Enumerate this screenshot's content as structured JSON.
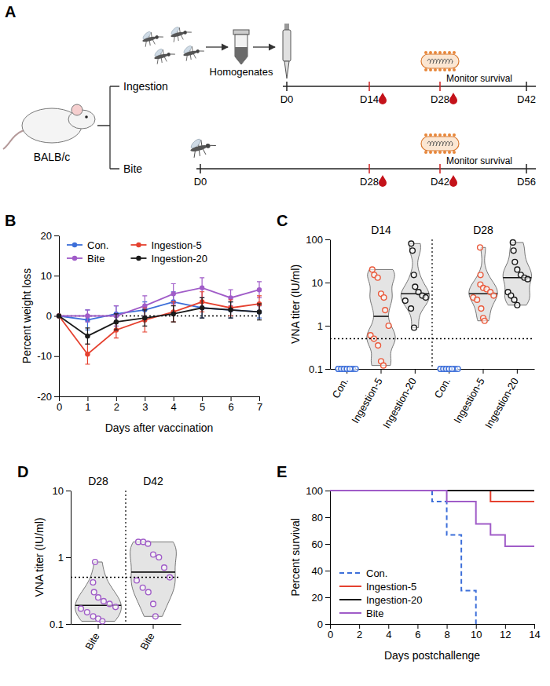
{
  "diagram": {
    "panel_label": "A",
    "host": "BALB/c",
    "arms": [
      {
        "label": "Ingestion",
        "step": "Homogenates",
        "timepoints": [
          "D0",
          "D14",
          "D28",
          "D42"
        ],
        "bleeds": [
          "D14",
          "D28"
        ],
        "challenge": "D28",
        "note": "Monitor survival"
      },
      {
        "label": "Bite",
        "timepoints": [
          "D0",
          "D28",
          "D42",
          "D56"
        ],
        "bleeds": [
          "D28",
          "D42"
        ],
        "challenge": "D42",
        "note": "Monitor survival"
      }
    ]
  },
  "chart_data": [
    {
      "panel_label": "B",
      "type": "line",
      "x": [
        0,
        1,
        2,
        3,
        4,
        5,
        6,
        7
      ],
      "xlim": [
        0,
        7
      ],
      "xticks": [
        0,
        1,
        2,
        3,
        4,
        5,
        6,
        7
      ],
      "ylim": [
        -20,
        20
      ],
      "yticks": [
        -20,
        -10,
        0,
        10,
        20
      ],
      "x_label": "Days after vaccination",
      "y_label": "Percent weight loss",
      "hline": 0,
      "legend": "upper left",
      "marker": "circle",
      "series": [
        {
          "name": "Con.",
          "color": "#3d6fd9",
          "values": [
            0,
            -1,
            0.5,
            1.5,
            3.5,
            2,
            1.5,
            1
          ],
          "errors": [
            0,
            2.5,
            2,
            2,
            2.5,
            2.5,
            2,
            1.5
          ]
        },
        {
          "name": "Bite",
          "color": "#a05cc8",
          "values": [
            0,
            0,
            0,
            2.5,
            5.5,
            7,
            4.5,
            6.5
          ],
          "errors": [
            0,
            1.5,
            2.5,
            2.5,
            2.5,
            2.5,
            2,
            2
          ]
        },
        {
          "name": "Ingestion-5",
          "color": "#e5412f",
          "values": [
            0,
            -9.5,
            -3.5,
            -1,
            1,
            3.5,
            2,
            3
          ],
          "errors": [
            0,
            2.5,
            2,
            3,
            2.5,
            2.5,
            2,
            2
          ]
        },
        {
          "name": "Ingestion-20",
          "color": "#1a1a1a",
          "values": [
            0,
            -5,
            -1.5,
            -0.5,
            0.5,
            2,
            1.5,
            1
          ],
          "errors": [
            0,
            2,
            2,
            2,
            2,
            2.5,
            2,
            2
          ]
        }
      ]
    },
    {
      "panel_label": "C",
      "type": "violin",
      "log": "y",
      "categories": [
        "Con.",
        "Ingestion-5",
        "Ingestion-20",
        "Con.",
        "Ingestion-5",
        "Ingestion-20"
      ],
      "groups": [
        "D14",
        "D28"
      ],
      "colors": [
        "#3d6fd9",
        "#ea5a3c",
        "#1a1a1a",
        "#3d6fd9",
        "#ea5a3c",
        "#1a1a1a"
      ],
      "values": [
        [
          0.1,
          0.1,
          0.1,
          0.1,
          0.1,
          0.1,
          0.1,
          0.1,
          0.1,
          0.1,
          0.1,
          0.1
        ],
        [
          20,
          15,
          13,
          5.5,
          4.5,
          2.3,
          1,
          0.6,
          0.5,
          0.35,
          0.15,
          0.12
        ],
        [
          80,
          55,
          15,
          8,
          6,
          5,
          4.5,
          3.8,
          2.5,
          0.9
        ],
        [
          0.1,
          0.1,
          0.1,
          0.1,
          0.1,
          0.1,
          0.1,
          0.1,
          0.1,
          0.1,
          0.1,
          0.1
        ],
        [
          65,
          15,
          9,
          7.5,
          7,
          6,
          5,
          4.5,
          4,
          2.5,
          1.5,
          1.3
        ],
        [
          85,
          55,
          30,
          20,
          15,
          13,
          12,
          6,
          5,
          4,
          3
        ]
      ],
      "ylim": [
        0.1,
        100
      ],
      "yticks": [
        0.1,
        1,
        10,
        100
      ],
      "y_label": "VNA titer (IU/ml)",
      "hline": 0.5
    },
    {
      "panel_label": "D",
      "type": "violin",
      "log": "y",
      "categories": [
        "Bite",
        "Bite"
      ],
      "groups": [
        "D28",
        "D42"
      ],
      "colors": [
        "#a05cc8",
        "#a05cc8"
      ],
      "values": [
        [
          0.85,
          0.42,
          0.3,
          0.25,
          0.22,
          0.2,
          0.18,
          0.17,
          0.15,
          0.13,
          0.12,
          0.11
        ],
        [
          1.7,
          1.7,
          1.6,
          1.1,
          1,
          0.7,
          0.5,
          0.45,
          0.35,
          0.3,
          0.2,
          0.13
        ]
      ],
      "ylim": [
        0.1,
        10
      ],
      "yticks": [
        0.1,
        1,
        10
      ],
      "y_label": "VNA titer (IU/ml)",
      "hline": 0.5
    },
    {
      "panel_label": "E",
      "type": "step",
      "xlim": [
        0,
        14
      ],
      "xticks": [
        0,
        2,
        4,
        6,
        8,
        10,
        12,
        14
      ],
      "ylim": [
        0,
        100
      ],
      "yticks": [
        0,
        20,
        40,
        60,
        80,
        100
      ],
      "x_label": "Days postchallenge",
      "y_label": "Percent survival",
      "legend": "lower left",
      "series": [
        {
          "name": "Con.",
          "color": "#3d6fd9",
          "line_style": "dashed",
          "x": [
            0,
            7,
            8,
            9,
            10
          ],
          "values": [
            100,
            91.7,
            66.7,
            25,
            0
          ]
        },
        {
          "name": "Ingestion-5",
          "color": "#e5412f",
          "line_style": "solid",
          "x": [
            0,
            11,
            14
          ],
          "values": [
            100,
            91.7,
            91.7
          ]
        },
        {
          "name": "Ingestion-20",
          "color": "#1a1a1a",
          "line_style": "solid",
          "x": [
            0,
            14
          ],
          "values": [
            100,
            100
          ]
        },
        {
          "name": "Bite",
          "color": "#a05cc8",
          "line_style": "solid",
          "x": [
            0,
            8,
            10,
            11,
            12,
            14
          ],
          "values": [
            100,
            91.7,
            75,
            66.7,
            58.3,
            58.3
          ]
        }
      ]
    }
  ]
}
